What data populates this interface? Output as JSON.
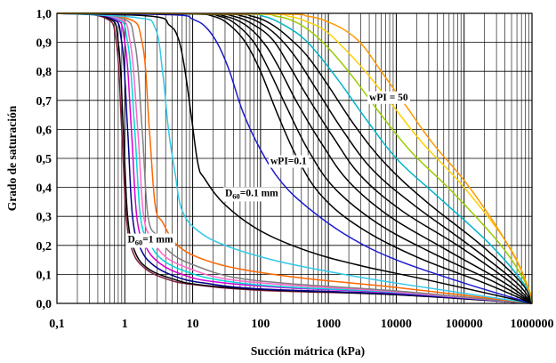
{
  "chart_data": {
    "type": "line",
    "title": "",
    "xlabel": "Succión mátrica (kPa)",
    "ylabel": "Grado de saturación",
    "xscale": "log",
    "xlim": [
      0.1,
      1000000
    ],
    "ylim": [
      0,
      1
    ],
    "grid": "log minor vertical + major horizontal",
    "x_ticks": [
      "0,1",
      "1",
      "10",
      "100",
      "1000",
      "10000",
      "100000",
      "1000000"
    ],
    "y_ticks": [
      "0,0",
      "0,1",
      "0,2",
      "0,3",
      "0,4",
      "0,5",
      "0,6",
      "0,7",
      "0,8",
      "0,9",
      "1,0"
    ],
    "annotations": [
      {
        "text": "wPI = 50",
        "x": 4000,
        "y": 0.7
      },
      {
        "text": "wPI=0.1",
        "x": 140,
        "y": 0.48
      },
      {
        "text_main": "D",
        "text_sub": "60",
        "text_rest": "=0.1 mm",
        "x": 30,
        "y": 0.37
      },
      {
        "text_main": "D",
        "text_sub": "60",
        "text_rest": "=1 mm",
        "x": 1.1,
        "y": 0.21
      }
    ],
    "series": [
      {
        "color": "#7f1f3f",
        "points": [
          [
            0.1,
            1
          ],
          [
            0.5,
            0.985
          ],
          [
            0.75,
            0.9
          ],
          [
            0.9,
            0.6
          ],
          [
            1.05,
            0.3
          ],
          [
            1.3,
            0.18
          ],
          [
            2,
            0.12
          ],
          [
            4,
            0.085
          ],
          [
            10,
            0.065
          ],
          [
            100,
            0.045
          ],
          [
            10000,
            0.03
          ],
          [
            1000000,
            0
          ]
        ]
      },
      {
        "color": "#000000",
        "points": [
          [
            0.1,
            1
          ],
          [
            0.55,
            0.985
          ],
          [
            0.8,
            0.9
          ],
          [
            0.95,
            0.6
          ],
          [
            1.1,
            0.3
          ],
          [
            1.4,
            0.18
          ],
          [
            2.2,
            0.12
          ],
          [
            5,
            0.085
          ],
          [
            12,
            0.065
          ],
          [
            100,
            0.048
          ],
          [
            10000,
            0.03
          ],
          [
            1000000,
            0
          ]
        ]
      },
      {
        "color": "#00008b",
        "points": [
          [
            0.1,
            1
          ],
          [
            0.6,
            0.985
          ],
          [
            0.9,
            0.9
          ],
          [
            1.1,
            0.6
          ],
          [
            1.3,
            0.3
          ],
          [
            1.7,
            0.19
          ],
          [
            2.7,
            0.13
          ],
          [
            6,
            0.09
          ],
          [
            15,
            0.07
          ],
          [
            100,
            0.05
          ],
          [
            10000,
            0.032
          ],
          [
            1000000,
            0
          ]
        ]
      },
      {
        "color": "#d400d4",
        "points": [
          [
            0.1,
            1
          ],
          [
            0.65,
            0.985
          ],
          [
            1,
            0.9
          ],
          [
            1.25,
            0.6
          ],
          [
            1.5,
            0.3
          ],
          [
            2,
            0.2
          ],
          [
            3.2,
            0.14
          ],
          [
            7,
            0.1
          ],
          [
            20,
            0.075
          ],
          [
            200,
            0.055
          ],
          [
            10000,
            0.036
          ],
          [
            1000000,
            0
          ]
        ]
      },
      {
        "color": "#00d8d8",
        "points": [
          [
            0.1,
            1
          ],
          [
            0.7,
            0.985
          ],
          [
            1.1,
            0.9
          ],
          [
            1.4,
            0.6
          ],
          [
            1.7,
            0.3
          ],
          [
            2.3,
            0.21
          ],
          [
            3.6,
            0.15
          ],
          [
            8,
            0.11
          ],
          [
            25,
            0.08
          ],
          [
            200,
            0.058
          ],
          [
            10000,
            0.038
          ],
          [
            1000000,
            0
          ]
        ]
      },
      {
        "color": "#ff66cc",
        "points": [
          [
            0.1,
            1
          ],
          [
            0.75,
            0.985
          ],
          [
            1.2,
            0.9
          ],
          [
            1.55,
            0.6
          ],
          [
            1.9,
            0.3
          ],
          [
            2.6,
            0.22
          ],
          [
            4,
            0.16
          ],
          [
            9,
            0.12
          ],
          [
            30,
            0.085
          ],
          [
            300,
            0.062
          ],
          [
            10000,
            0.04
          ],
          [
            1000000,
            0
          ]
        ]
      },
      {
        "color": "#7f7f7f",
        "points": [
          [
            0.1,
            1
          ],
          [
            0.85,
            0.985
          ],
          [
            1.4,
            0.9
          ],
          [
            1.8,
            0.6
          ],
          [
            2.2,
            0.3
          ],
          [
            3.1,
            0.23
          ],
          [
            5,
            0.17
          ],
          [
            11,
            0.13
          ],
          [
            40,
            0.09
          ],
          [
            300,
            0.067
          ],
          [
            10000,
            0.043
          ],
          [
            1000000,
            0
          ]
        ]
      },
      {
        "color": "#ff6600",
        "points": [
          [
            0.1,
            1
          ],
          [
            1,
            0.985
          ],
          [
            1.8,
            0.9
          ],
          [
            2.3,
            0.6
          ],
          [
            2.8,
            0.34
          ],
          [
            3.6,
            0.28
          ],
          [
            6,
            0.2
          ],
          [
            15,
            0.15
          ],
          [
            60,
            0.115
          ],
          [
            500,
            0.085
          ],
          [
            10000,
            0.055
          ],
          [
            1000000,
            0
          ]
        ]
      },
      {
        "color": "#33c8e8",
        "points": [
          [
            0.1,
            1
          ],
          [
            1.5,
            0.985
          ],
          [
            2.8,
            0.95
          ],
          [
            3.6,
            0.8
          ],
          [
            4.4,
            0.6
          ],
          [
            5.5,
            0.45
          ],
          [
            7,
            0.32
          ],
          [
            12,
            0.25
          ],
          [
            30,
            0.2
          ],
          [
            150,
            0.15
          ],
          [
            1000,
            0.11
          ],
          [
            10000,
            0.07
          ],
          [
            1000000,
            0
          ]
        ]
      },
      {
        "color": "#000000",
        "points": [
          [
            0.1,
            1
          ],
          [
            2.5,
            0.99
          ],
          [
            4.5,
            0.96
          ],
          [
            6,
            0.92
          ],
          [
            7.5,
            0.82
          ],
          [
            9.5,
            0.65
          ],
          [
            12,
            0.48
          ],
          [
            15,
            0.43
          ],
          [
            30,
            0.34
          ],
          [
            100,
            0.25
          ],
          [
            500,
            0.18
          ],
          [
            3000,
            0.13
          ],
          [
            30000,
            0.08
          ],
          [
            1000000,
            0
          ]
        ]
      },
      {
        "color": "#1a1acc",
        "points": [
          [
            0.1,
            1
          ],
          [
            5,
            0.995
          ],
          [
            10,
            0.98
          ],
          [
            16,
            0.95
          ],
          [
            24,
            0.89
          ],
          [
            35,
            0.8
          ],
          [
            55,
            0.66
          ],
          [
            100,
            0.53
          ],
          [
            200,
            0.42
          ],
          [
            500,
            0.33
          ],
          [
            2000,
            0.23
          ],
          [
            10000,
            0.15
          ],
          [
            100000,
            0.07
          ],
          [
            1000000,
            0
          ]
        ]
      },
      {
        "color": "#000000",
        "points": [
          [
            0.1,
            1
          ],
          [
            8,
            0.998
          ],
          [
            20,
            0.99
          ],
          [
            35,
            0.96
          ],
          [
            60,
            0.9
          ],
          [
            100,
            0.8
          ],
          [
            180,
            0.65
          ],
          [
            350,
            0.5
          ],
          [
            800,
            0.37
          ],
          [
            3000,
            0.26
          ],
          [
            20000,
            0.16
          ],
          [
            200000,
            0.07
          ],
          [
            1000000,
            0
          ]
        ]
      },
      {
        "color": "#000000",
        "points": [
          [
            0.1,
            1
          ],
          [
            10,
            0.998
          ],
          [
            25,
            0.99
          ],
          [
            45,
            0.96
          ],
          [
            80,
            0.9
          ],
          [
            130,
            0.81
          ],
          [
            250,
            0.67
          ],
          [
            500,
            0.53
          ],
          [
            1200,
            0.4
          ],
          [
            5000,
            0.28
          ],
          [
            30000,
            0.18
          ],
          [
            300000,
            0.07
          ],
          [
            1000000,
            0
          ]
        ]
      },
      {
        "color": "#000000",
        "points": [
          [
            0.1,
            1
          ],
          [
            12,
            0.998
          ],
          [
            30,
            0.99
          ],
          [
            60,
            0.96
          ],
          [
            110,
            0.9
          ],
          [
            180,
            0.82
          ],
          [
            350,
            0.69
          ],
          [
            800,
            0.55
          ],
          [
            2000,
            0.42
          ],
          [
            8000,
            0.3
          ],
          [
            50000,
            0.19
          ],
          [
            400000,
            0.07
          ],
          [
            1000000,
            0
          ]
        ]
      },
      {
        "color": "#000000",
        "points": [
          [
            0.1,
            1
          ],
          [
            15,
            0.998
          ],
          [
            40,
            0.99
          ],
          [
            80,
            0.96
          ],
          [
            150,
            0.91
          ],
          [
            250,
            0.83
          ],
          [
            500,
            0.71
          ],
          [
            1200,
            0.57
          ],
          [
            3000,
            0.44
          ],
          [
            12000,
            0.32
          ],
          [
            80000,
            0.2
          ],
          [
            500000,
            0.07
          ],
          [
            1000000,
            0
          ]
        ]
      },
      {
        "color": "#000000",
        "points": [
          [
            0.1,
            1
          ],
          [
            20,
            0.998
          ],
          [
            55,
            0.99
          ],
          [
            110,
            0.96
          ],
          [
            200,
            0.91
          ],
          [
            350,
            0.84
          ],
          [
            700,
            0.73
          ],
          [
            1700,
            0.59
          ],
          [
            4500,
            0.46
          ],
          [
            18000,
            0.34
          ],
          [
            120000,
            0.2
          ],
          [
            600000,
            0.07
          ],
          [
            1000000,
            0
          ]
        ]
      },
      {
        "color": "#000000",
        "points": [
          [
            0.1,
            1
          ],
          [
            28,
            0.998
          ],
          [
            75,
            0.99
          ],
          [
            150,
            0.96
          ],
          [
            280,
            0.91
          ],
          [
            500,
            0.85
          ],
          [
            1000,
            0.75
          ],
          [
            2500,
            0.61
          ],
          [
            7000,
            0.48
          ],
          [
            28000,
            0.35
          ],
          [
            180000,
            0.2
          ],
          [
            700000,
            0.07
          ],
          [
            1000000,
            0
          ]
        ]
      },
      {
        "color": "#00b4c8",
        "points": [
          [
            0.1,
            1
          ],
          [
            40,
            0.998
          ],
          [
            110,
            0.99
          ],
          [
            220,
            0.96
          ],
          [
            400,
            0.92
          ],
          [
            700,
            0.86
          ],
          [
            1500,
            0.76
          ],
          [
            4000,
            0.62
          ],
          [
            11000,
            0.49
          ],
          [
            45000,
            0.36
          ],
          [
            250000,
            0.2
          ],
          [
            800000,
            0.06
          ],
          [
            1000000,
            0
          ]
        ]
      },
      {
        "color": "#99cc00",
        "points": [
          [
            0.1,
            1
          ],
          [
            60,
            0.998
          ],
          [
            170,
            0.99
          ],
          [
            330,
            0.97
          ],
          [
            600,
            0.93
          ],
          [
            1100,
            0.87
          ],
          [
            2300,
            0.78
          ],
          [
            6000,
            0.65
          ],
          [
            17000,
            0.52
          ],
          [
            70000,
            0.38
          ],
          [
            350000,
            0.2
          ],
          [
            850000,
            0.06
          ],
          [
            1000000,
            0
          ]
        ]
      },
      {
        "color": "#ffd000",
        "points": [
          [
            0.1,
            1
          ],
          [
            90,
            0.998
          ],
          [
            260,
            0.99
          ],
          [
            500,
            0.97
          ],
          [
            900,
            0.94
          ],
          [
            1700,
            0.88
          ],
          [
            3500,
            0.8
          ],
          [
            9000,
            0.68
          ],
          [
            25000,
            0.55
          ],
          [
            100000,
            0.4
          ],
          [
            450000,
            0.2
          ],
          [
            900000,
            0.05
          ],
          [
            1000000,
            0
          ]
        ]
      },
      {
        "color": "#ff9900",
        "points": [
          [
            0.1,
            1
          ],
          [
            150,
            0.998
          ],
          [
            500,
            0.99
          ],
          [
            1000,
            0.97
          ],
          [
            1800,
            0.94
          ],
          [
            3200,
            0.89
          ],
          [
            6000,
            0.8
          ],
          [
            14000,
            0.68
          ],
          [
            35000,
            0.55
          ],
          [
            120000,
            0.4
          ],
          [
            500000,
            0.18
          ],
          [
            920000,
            0.04
          ],
          [
            1000000,
            0
          ]
        ]
      }
    ]
  }
}
